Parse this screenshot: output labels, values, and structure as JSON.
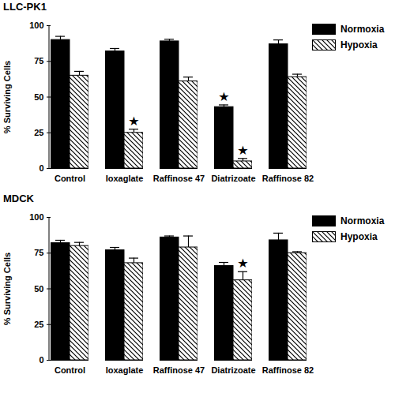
{
  "chart_data": [
    {
      "type": "bar",
      "title": "LLC-PK1",
      "y_label": "% Surviving Cells",
      "categories": [
        "Control",
        "Ioxaglate",
        "Raffinose 47",
        "Diatrizoate",
        "Raffinose 82"
      ],
      "series": [
        {
          "name": "Normoxia",
          "color": "#000000",
          "line_style": "solid",
          "values": [
            90,
            82,
            89,
            43,
            87
          ],
          "errors": [
            2.5,
            2,
            1.5,
            1.5,
            3
          ],
          "annotations": [
            null,
            null,
            null,
            "★",
            null
          ]
        },
        {
          "name": "Hypoxia",
          "color": "#000000",
          "line_style": "diagonal",
          "values": [
            65,
            25,
            61,
            5,
            64
          ],
          "errors": [
            3,
            2.5,
            3,
            2,
            2
          ],
          "annotations": [
            null,
            "★",
            null,
            "★",
            null
          ]
        }
      ],
      "ylim": [
        0,
        100
      ],
      "yticks": [
        0,
        25,
        50,
        75,
        100
      ],
      "legend": "top-right"
    },
    {
      "type": "bar",
      "title": "MDCK",
      "y_label": "% Surviving Cells",
      "categories": [
        "Control",
        "Ioxaglate",
        "Raffinose 47",
        "Diatrizoate",
        "Raffinose 82"
      ],
      "series": [
        {
          "name": "Normoxia",
          "color": "#000000",
          "line_style": "solid",
          "values": [
            82,
            77,
            86,
            66,
            84
          ],
          "errors": [
            2,
            2,
            1,
            2.5,
            5
          ],
          "annotations": [
            null,
            null,
            null,
            null,
            null
          ]
        },
        {
          "name": "Hypoxia",
          "color": "#000000",
          "line_style": "diagonal",
          "values": [
            80,
            68,
            79,
            56,
            75
          ],
          "errors": [
            2.5,
            3.5,
            8,
            6,
            1
          ],
          "annotations": [
            null,
            null,
            null,
            "★",
            null
          ]
        }
      ],
      "ylim": [
        0,
        100
      ],
      "yticks": [
        0,
        25,
        50,
        75,
        100
      ],
      "legend": "top-right"
    }
  ]
}
